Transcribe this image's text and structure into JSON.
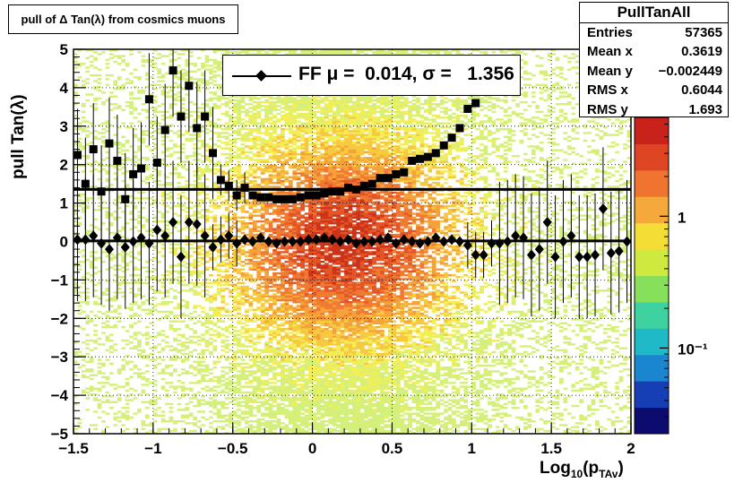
{
  "title": "pull of Δ Tan(λ) from cosmics muons",
  "stats": {
    "name": "PullTanAll",
    "rows": [
      {
        "label": "Entries",
        "value": "57365"
      },
      {
        "label": "Mean x",
        "value": "0.3619"
      },
      {
        "label": "Mean y",
        "value": "−0.002449"
      },
      {
        "label": "RMS x",
        "value": "0.6044"
      },
      {
        "label": "RMS y",
        "value": "1.693"
      }
    ]
  },
  "legend": {
    "text": "FF μ =  0.014, σ =   1.356"
  },
  "chart_data": {
    "type": "heatmap",
    "xlabel_main": "Log",
    "xlabel_sub": "10",
    "xlabel_var": "(p",
    "xlabel_var_sub": "TAv",
    "xlabel_close": ")",
    "ylabel": "pull Tan(λ)",
    "xlim": [
      -1.5,
      2
    ],
    "ylim": [
      -5,
      5
    ],
    "xticks": [
      "−1.5",
      "−1",
      "−0.5",
      "0",
      "0.5",
      "1",
      "1.5",
      "2"
    ],
    "xtick_values": [
      -1.5,
      -1,
      -0.5,
      0,
      0.5,
      1,
      1.5,
      2
    ],
    "yticks": [
      "−5",
      "−4",
      "−3",
      "−2",
      "−1",
      "0",
      "1",
      "2",
      "3",
      "4",
      "5"
    ],
    "ytick_values": [
      -5,
      -4,
      -3,
      -2,
      -1,
      0,
      1,
      2,
      3,
      4,
      5
    ],
    "colorbar_ticks": [
      "10⁻¹",
      "1"
    ],
    "colorbar_tick_values": [
      0.1,
      1
    ],
    "log_z": true,
    "grid": true,
    "fit_lines": {
      "mean": 0.014,
      "sigma": 1.356
    },
    "mean_series": {
      "name": "mean",
      "x": [
        -1.475,
        -1.425,
        -1.375,
        -1.325,
        -1.275,
        -1.225,
        -1.175,
        -1.125,
        -1.075,
        -1.025,
        -0.975,
        -0.925,
        -0.875,
        -0.825,
        -0.775,
        -0.725,
        -0.675,
        -0.625,
        -0.575,
        -0.525,
        -0.475,
        -0.425,
        -0.375,
        -0.325,
        -0.275,
        -0.225,
        -0.175,
        -0.125,
        -0.075,
        -0.025,
        0.025,
        0.075,
        0.125,
        0.175,
        0.225,
        0.275,
        0.325,
        0.375,
        0.425,
        0.475,
        0.525,
        0.575,
        0.625,
        0.675,
        0.725,
        0.775,
        0.825,
        0.875,
        0.925,
        0.975,
        1.025,
        1.075,
        1.125,
        1.175,
        1.225,
        1.275,
        1.325,
        1.375,
        1.425,
        1.475,
        1.525,
        1.575,
        1.625,
        1.675,
        1.725,
        1.775,
        1.825,
        1.875,
        1.925,
        1.975
      ],
      "y": [
        0.05,
        0.05,
        0.15,
        -0.05,
        -0.2,
        0.1,
        -0.15,
        0.0,
        0.1,
        -0.05,
        0.3,
        0.15,
        0.5,
        -0.4,
        0.5,
        0.45,
        0.15,
        -0.15,
        0.05,
        0.15,
        -0.05,
        0.05,
        0.0,
        0.1,
        0.0,
        -0.05,
        0.0,
        0.0,
        0.0,
        0.05,
        0.05,
        0.1,
        0.05,
        0.0,
        0.05,
        -0.05,
        0.0,
        0.0,
        0.05,
        0.1,
        -0.05,
        0.05,
        0.0,
        -0.05,
        0.0,
        0.1,
        0.0,
        0.05,
        0.0,
        -0.1,
        -0.35,
        -0.35,
        -0.05,
        -0.05,
        0.0,
        0.15,
        0.1,
        -0.35,
        -0.2,
        0.5,
        -0.4,
        0.0,
        0.15,
        -0.4,
        -0.4,
        -0.35,
        0.85,
        -0.3,
        -0.25,
        0.0
      ]
    },
    "sigma_series": {
      "name": "sigma",
      "x": [
        -1.475,
        -1.425,
        -1.375,
        -1.325,
        -1.275,
        -1.225,
        -1.175,
        -1.125,
        -1.075,
        -1.025,
        -0.975,
        -0.925,
        -0.875,
        -0.825,
        -0.775,
        -0.725,
        -0.675,
        -0.625,
        -0.575,
        -0.525,
        -0.475,
        -0.425,
        -0.375,
        -0.325,
        -0.275,
        -0.225,
        -0.175,
        -0.125,
        -0.075,
        -0.025,
        0.025,
        0.075,
        0.125,
        0.175,
        0.225,
        0.275,
        0.325,
        0.375,
        0.425,
        0.475,
        0.525,
        0.575,
        0.625,
        0.675,
        0.725,
        0.775,
        0.825,
        0.875,
        0.925,
        0.975,
        1.025
      ],
      "y": [
        2.25,
        1.5,
        2.4,
        1.3,
        2.55,
        2.1,
        1.1,
        1.75,
        1.9,
        3.7,
        2.05,
        2.9,
        4.45,
        3.25,
        4.05,
        2.95,
        3.25,
        2.3,
        1.6,
        1.45,
        1.2,
        1.4,
        1.2,
        1.15,
        1.15,
        1.1,
        1.1,
        1.1,
        1.15,
        1.2,
        1.2,
        1.25,
        1.3,
        1.3,
        1.4,
        1.35,
        1.45,
        1.5,
        1.65,
        1.65,
        1.75,
        1.8,
        2.1,
        2.15,
        2.2,
        2.3,
        2.5,
        2.7,
        2.95,
        3.45,
        3.6
      ]
    }
  }
}
